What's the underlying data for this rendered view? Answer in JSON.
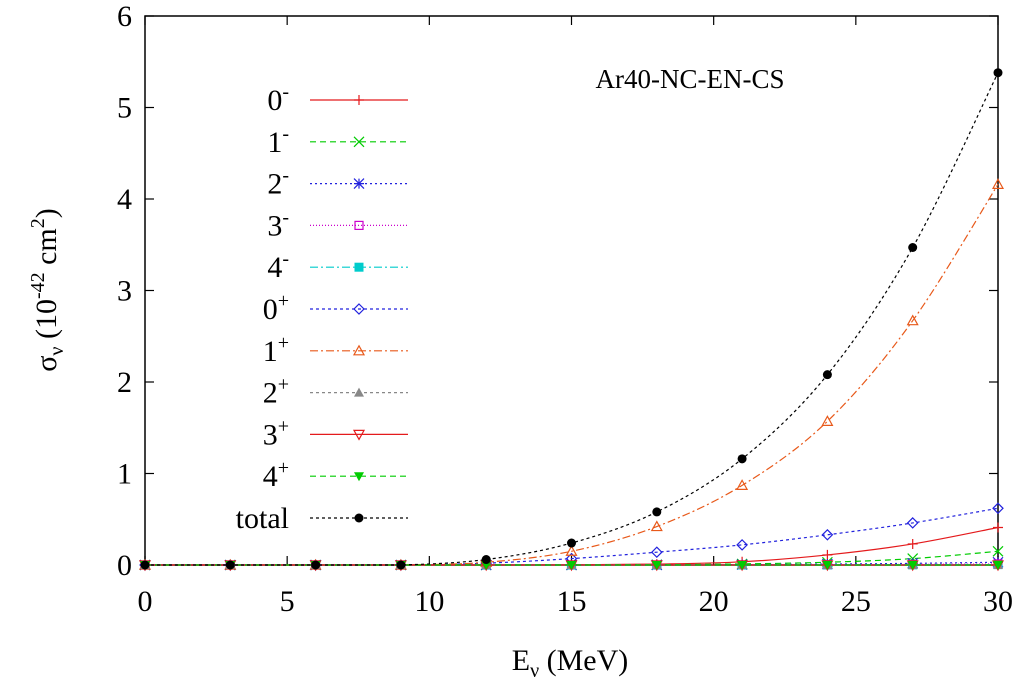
{
  "chart_data": {
    "type": "line",
    "title": "Ar40-NC-EN-CS",
    "xlabel": {
      "base": "E",
      "sub": "ν",
      "rest": " (MeV)"
    },
    "ylabel": {
      "base": "σ",
      "sub": "ν",
      "rest1": " (10",
      "sup": "-42",
      "rest2": " cm",
      "sup2": "2",
      "rest3": ")"
    },
    "xlim": [
      0,
      30
    ],
    "ylim": [
      0,
      6
    ],
    "xticks": [
      "0",
      "5",
      "10",
      "15",
      "20",
      "25",
      "30"
    ],
    "yticks": [
      "0",
      "1",
      "2",
      "3",
      "4",
      "5",
      "6"
    ],
    "grid": false,
    "legend_position": "left-inside",
    "x": [
      0,
      3,
      6,
      9,
      12,
      15,
      18,
      21,
      24,
      27,
      30
    ],
    "series": [
      {
        "label": "0",
        "sup": "-",
        "color": "#e41a1c",
        "marker": "plus",
        "dash": "",
        "values": [
          0,
          0,
          0,
          0,
          0,
          0.002,
          0.01,
          0.035,
          0.11,
          0.23,
          0.41
        ]
      },
      {
        "label": "1",
        "sup": "-",
        "color": "#00cc00",
        "marker": "cross",
        "dash": "6,4",
        "values": [
          0,
          0,
          0,
          0,
          0,
          0,
          0.003,
          0.012,
          0.03,
          0.07,
          0.15
        ]
      },
      {
        "label": "2",
        "sup": "-",
        "color": "#2222dd",
        "marker": "star",
        "dash": "2,3",
        "values": [
          0,
          0,
          0,
          0,
          0,
          0,
          0.001,
          0.004,
          0.01,
          0.018,
          0.03
        ]
      },
      {
        "label": "3",
        "sup": "-",
        "color": "#cc00cc",
        "marker": "square-open",
        "dash": "1,2",
        "values": [
          0,
          0,
          0,
          0,
          0,
          0,
          0,
          0.001,
          0.003,
          0.006,
          0.012
        ]
      },
      {
        "label": "4",
        "sup": "-",
        "color": "#00cccc",
        "marker": "square-filled",
        "dash": "8,3,2,3",
        "values": [
          0,
          0,
          0,
          0,
          0,
          0,
          0,
          0,
          0.001,
          0.002,
          0.004
        ]
      },
      {
        "label": "0",
        "sup": "+",
        "color": "#2222dd",
        "marker": "diamond-open",
        "dash": "3,3",
        "values": [
          0,
          0,
          0,
          0,
          0.02,
          0.07,
          0.14,
          0.22,
          0.33,
          0.46,
          0.62
        ]
      },
      {
        "label": "1",
        "sup": "+",
        "color": "#e8591a",
        "marker": "triangle-open",
        "dash": "8,3,2,3",
        "values": [
          0,
          0,
          0,
          0,
          0.03,
          0.15,
          0.42,
          0.87,
          1.57,
          2.67,
          4.16
        ]
      },
      {
        "label": "2",
        "sup": "+",
        "color": "#888888",
        "marker": "triangle-filled",
        "dash": "3,3",
        "values": [
          0,
          0,
          0,
          0,
          0,
          0,
          0,
          0,
          0,
          0,
          0
        ]
      },
      {
        "label": "3",
        "sup": "+",
        "color": "#e41a1c",
        "marker": "triangle-down-open",
        "dash": "",
        "values": [
          0,
          0,
          0,
          0,
          0,
          0,
          0,
          0,
          0,
          0,
          0
        ]
      },
      {
        "label": "4",
        "sup": "+",
        "color": "#00cc00",
        "marker": "triangle-down-filled",
        "dash": "6,4",
        "values": [
          0,
          0,
          0,
          0,
          0,
          0,
          0,
          0,
          0,
          0,
          0
        ]
      },
      {
        "label": "total",
        "sup": "",
        "color": "#000000",
        "marker": "circle-filled",
        "dash": "3,3",
        "values": [
          0,
          0,
          0,
          0,
          0.06,
          0.24,
          0.58,
          1.16,
          2.08,
          3.47,
          5.38
        ]
      }
    ]
  }
}
